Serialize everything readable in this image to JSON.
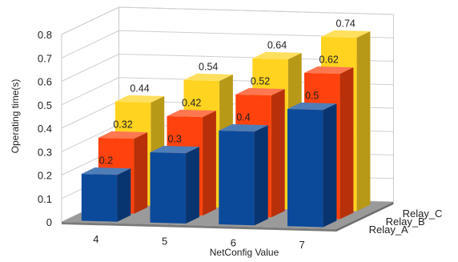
{
  "chart_data": {
    "type": "bar",
    "categories": [
      "4",
      "5",
      "6",
      "7"
    ],
    "series": [
      {
        "name": "Relay_A",
        "values": [
          0.2,
          0.3,
          0.4,
          0.5
        ],
        "color": "#0b4a9b"
      },
      {
        "name": "Relay_B",
        "values": [
          0.32,
          0.42,
          0.52,
          0.62
        ],
        "color": "#ff420e"
      },
      {
        "name": "Relay_C",
        "values": [
          0.44,
          0.54,
          0.64,
          0.74
        ],
        "color": "#ffd320"
      }
    ],
    "value_labels": [
      [
        "0.2",
        "0.3",
        "0.4",
        "0.5"
      ],
      [
        "0.32",
        "0.42",
        "0.52",
        "0.62"
      ],
      [
        "0.44",
        "0.54",
        "0.64",
        "0.74"
      ]
    ],
    "yticks": [
      "0",
      "0.1",
      "0.2",
      "0.3",
      "0.4",
      "0.5",
      "0.6",
      "0.7",
      "0.8"
    ],
    "ylim": [
      0,
      0.8
    ],
    "xlabel": "NetConfig Value",
    "ylabel": "Operating time(s)",
    "grid": true,
    "style": "3d-bar"
  }
}
